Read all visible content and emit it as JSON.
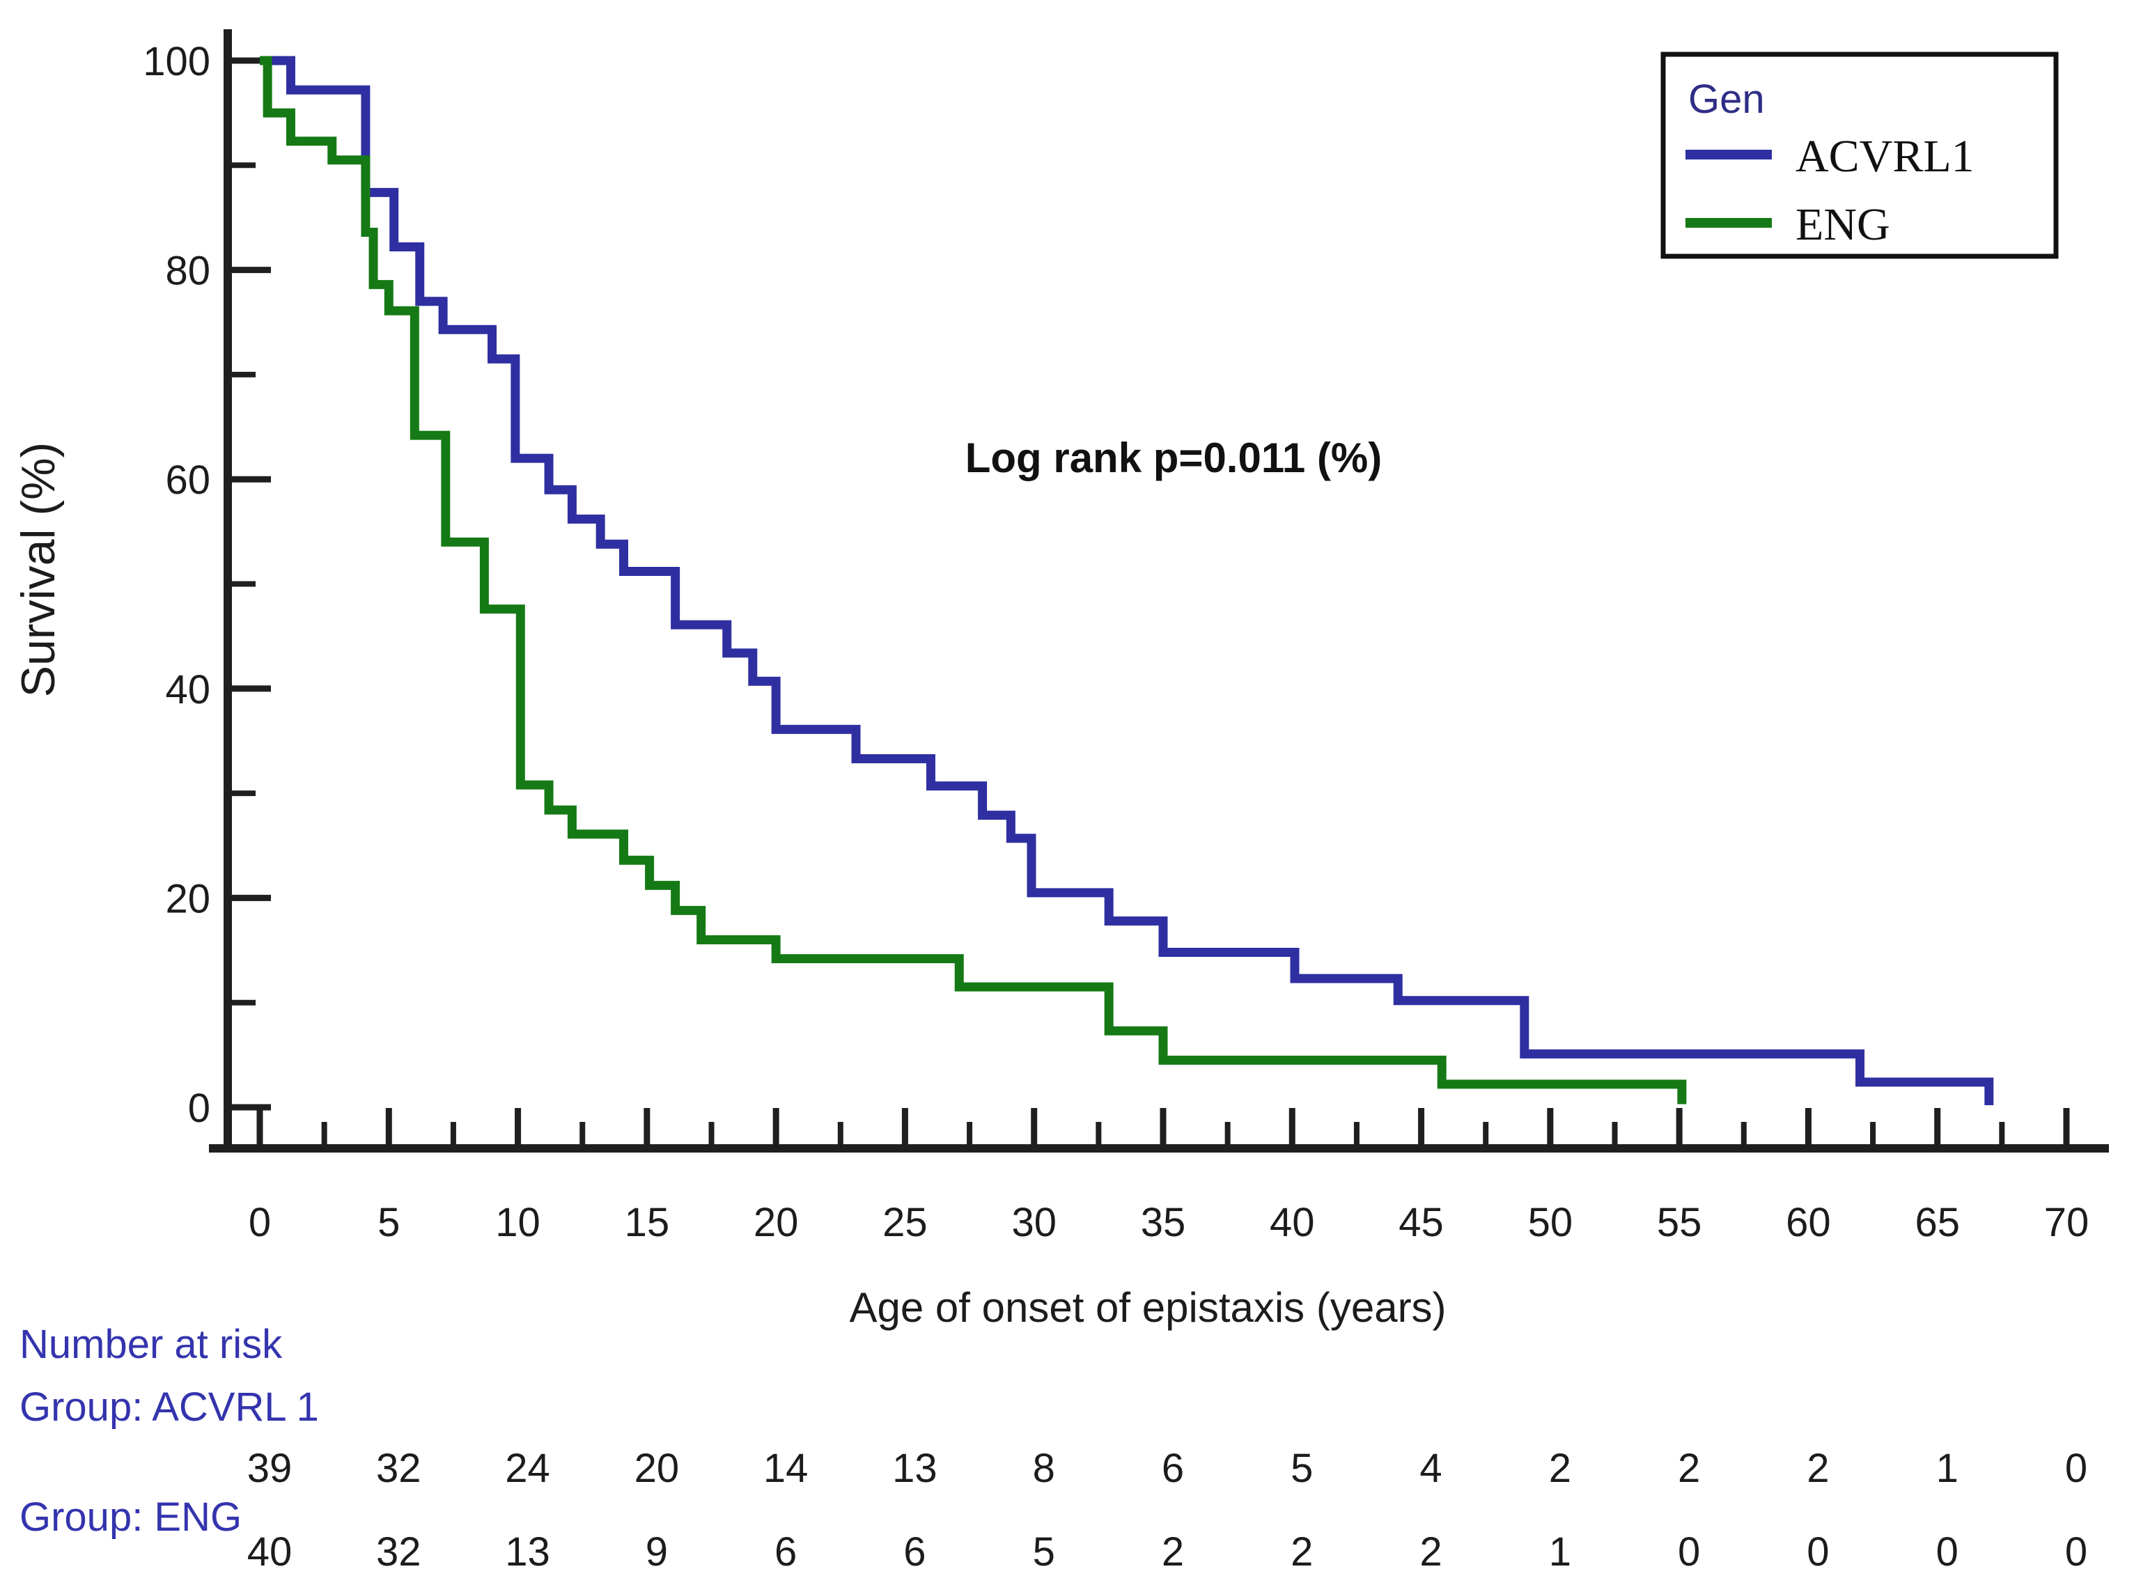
{
  "figure": {
    "ylabel": "Survival  (%)",
    "xlabel": "Age of onset of epistaxis (years)",
    "annotation": "Log rank p=0.011 (%)",
    "legend": {
      "title": "Gen",
      "entries": [
        {
          "label": "ACVRL1",
          "color": "#2f2fa2"
        },
        {
          "label": "ENG",
          "color": "#157a15"
        }
      ]
    },
    "colors": {
      "axis": "#1f1f1f",
      "tick_label": "#1c1c1c",
      "annotation": "#111111",
      "risk_label": "#3434ae",
      "risk_value": "#1c1c1c",
      "legend_title": "#2e2e86",
      "acvrl1": "#2f2fa2",
      "eng": "#157a15"
    }
  },
  "chart_data": {
    "type": "line",
    "subtype": "kaplan-meier-step",
    "title": "",
    "xlabel": "Age of onset of epistaxis (years)",
    "ylabel": "Survival (%)",
    "annotation": "Log rank p=0.011 (%)",
    "xlim": [
      0,
      70
    ],
    "ylim": [
      0,
      100
    ],
    "x_ticks": [
      0,
      5,
      10,
      15,
      20,
      25,
      30,
      35,
      40,
      45,
      50,
      55,
      60,
      65,
      70
    ],
    "x_minor_ticks": [
      2.5,
      7.5,
      12.5,
      17.5,
      22.5,
      27.5,
      32.5,
      37.5,
      42.5,
      47.5,
      52.5,
      57.5,
      62.5,
      67.5
    ],
    "y_ticks": [
      0,
      20,
      40,
      60,
      80,
      100
    ],
    "y_minor_ticks": [
      10,
      30,
      50,
      70,
      90
    ],
    "grid": false,
    "legend_position": "top-right",
    "series": [
      {
        "name": "ACVRL1",
        "color": "#2f2fa2",
        "points": [
          [
            0,
            100
          ],
          [
            1.2,
            97.2
          ],
          [
            4.1,
            87.4
          ],
          [
            5.2,
            82.2
          ],
          [
            6.2,
            77.0
          ],
          [
            7.1,
            74.3
          ],
          [
            9.0,
            71.5
          ],
          [
            9.9,
            62.0
          ],
          [
            11.2,
            59.0
          ],
          [
            12.1,
            56.2
          ],
          [
            13.2,
            53.8
          ],
          [
            14.1,
            51.2
          ],
          [
            16.1,
            46.1
          ],
          [
            18.1,
            43.4
          ],
          [
            19.1,
            40.7
          ],
          [
            20.0,
            36.1
          ],
          [
            23.1,
            33.3
          ],
          [
            26.0,
            30.7
          ],
          [
            28.0,
            27.9
          ],
          [
            29.1,
            25.7
          ],
          [
            29.9,
            20.5
          ],
          [
            32.9,
            17.8
          ],
          [
            35.0,
            14.8
          ],
          [
            40.1,
            12.3
          ],
          [
            44.1,
            10.2
          ],
          [
            49.0,
            5.1
          ],
          [
            62.0,
            2.4
          ],
          [
            67.0,
            0.2
          ]
        ]
      },
      {
        "name": "ENG",
        "color": "#157a15",
        "points": [
          [
            0,
            100
          ],
          [
            0.3,
            95.0
          ],
          [
            1.2,
            92.3
          ],
          [
            2.8,
            90.5
          ],
          [
            4.1,
            83.6
          ],
          [
            4.4,
            78.6
          ],
          [
            5.0,
            76.1
          ],
          [
            6.0,
            64.2
          ],
          [
            7.2,
            54.0
          ],
          [
            8.7,
            47.6
          ],
          [
            10.1,
            30.8
          ],
          [
            11.2,
            28.4
          ],
          [
            12.1,
            26.1
          ],
          [
            14.1,
            23.6
          ],
          [
            15.1,
            21.2
          ],
          [
            16.1,
            18.8
          ],
          [
            17.1,
            16.0
          ],
          [
            20.0,
            14.2
          ],
          [
            27.1,
            11.5
          ],
          [
            32.9,
            7.3
          ],
          [
            35.0,
            4.5
          ],
          [
            45.8,
            2.2
          ],
          [
            55.1,
            0.3
          ]
        ]
      }
    ],
    "number_at_risk": {
      "title": "Number at risk",
      "ages": [
        0,
        5,
        10,
        15,
        20,
        25,
        30,
        35,
        40,
        45,
        50,
        55,
        60,
        65,
        70
      ],
      "groups": [
        {
          "label": "Group: ACVRL 1",
          "values": [
            39,
            32,
            24,
            20,
            14,
            13,
            8,
            6,
            5,
            4,
            2,
            2,
            2,
            1,
            0
          ]
        },
        {
          "label": "Group: ENG",
          "values": [
            40,
            32,
            13,
            9,
            6,
            6,
            5,
            2,
            2,
            2,
            1,
            0,
            0,
            0,
            0
          ]
        }
      ]
    }
  }
}
